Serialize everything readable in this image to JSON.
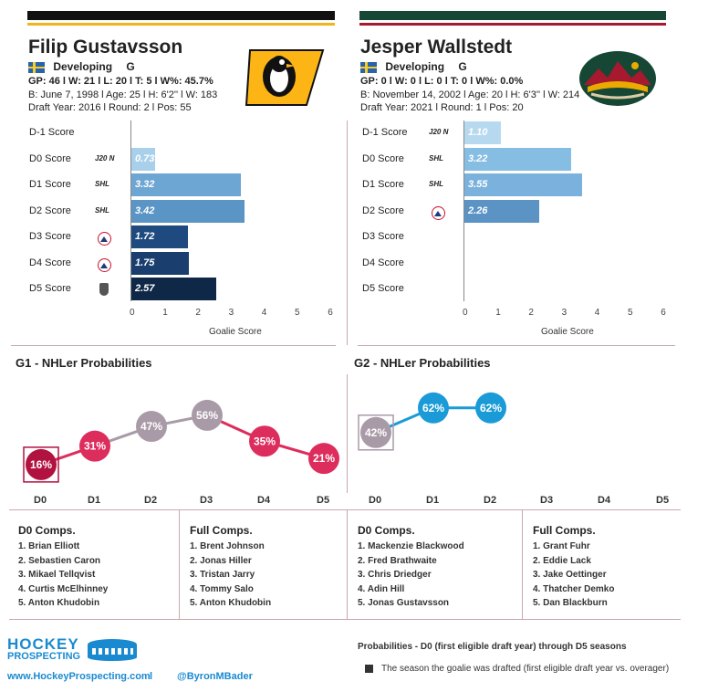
{
  "players": [
    {
      "name": "Filip Gustavsson",
      "flag": "sweden-flag",
      "status": "Developing",
      "position": "G",
      "stats_line": "GP: 46 l W: 21 l L: 20  l T: 5  l W%: 45.7%",
      "bio_line": "B: June 7, 1998 l Age: 25 l H: 6'2'' l W: 183",
      "draft_line": "Draft Year: 2016 l Round: 2 l Pos: 55",
      "team_logo": "pittsburgh-penguins-logo",
      "colors": {
        "top": "#111111",
        "sub": "#f2b418"
      },
      "bars": [
        {
          "label": "D-1 Score",
          "league": "",
          "value": null,
          "color": ""
        },
        {
          "label": "D0 Score",
          "league": "J20 N",
          "value": 0.73,
          "color": "#a9d0ea"
        },
        {
          "label": "D1 Score",
          "league": "SHL",
          "value": 3.32,
          "color": "#6ea6d3"
        },
        {
          "label": "D2  Score",
          "league": "SHL",
          "value": 3.42,
          "color": "#5b95c6"
        },
        {
          "label": "D3 Score",
          "league": "AHL",
          "value": 1.72,
          "color": "#1e4a80"
        },
        {
          "label": "D4 Score",
          "league": "AHL",
          "value": 1.75,
          "color": "#1a3f6f"
        },
        {
          "label": "D5 Score",
          "league": "KHL",
          "value": 2.57,
          "color": "#0f2847"
        }
      ],
      "prob_title": "G1 - NHLer Probabilities",
      "probs": [
        {
          "season": "D0",
          "value": 16,
          "label": "16%",
          "color": "#b2123f",
          "drafted": true
        },
        {
          "season": "D1",
          "value": 31,
          "label": "31%",
          "color": "#dd2d5c",
          "drafted": false
        },
        {
          "season": "D2",
          "value": 47,
          "label": "47%",
          "color": "#a99aa8",
          "drafted": false
        },
        {
          "season": "D3",
          "value": 56,
          "label": "56%",
          "color": "#a99aa8",
          "drafted": false
        },
        {
          "season": "D4",
          "value": 35,
          "label": "35%",
          "color": "#dd2d5c",
          "drafted": false
        },
        {
          "season": "D5",
          "value": 21,
          "label": "21%",
          "color": "#dd2d5c",
          "drafted": false
        }
      ],
      "d0_comps": {
        "title": "D0 Comps.",
        "items": [
          "1. Brian Elliott",
          "2. Sebastien Caron",
          "3. Mikael Tellqvist",
          "4. Curtis McElhinney",
          "5. Anton Khudobin"
        ]
      },
      "full_comps": {
        "title": "Full Comps.",
        "items": [
          "1. Brent Johnson",
          "2. Jonas Hiller",
          "3. Tristan Jarry",
          "4. Tommy Salo",
          "5. Anton Khudobin"
        ]
      }
    },
    {
      "name": "Jesper Wallstedt",
      "flag": "sweden-flag",
      "status": "Developing",
      "position": "G",
      "stats_line": "GP: 0 l W: 0 l L: 0  l T: 0  l W%: 0.0%",
      "bio_line": "B: November 14, 2002 l Age: 20 l H: 6'3'' l W: 214",
      "draft_line": "Draft Year: 2021 l Round: 1 l Pos: 20",
      "team_logo": "minnesota-wild-logo",
      "colors": {
        "top": "#154734",
        "sub": "#a6192e"
      },
      "bars": [
        {
          "label": "D-1 Score",
          "league": "J20 N",
          "value": 1.1,
          "color": "#b7d9ef"
        },
        {
          "label": "D0 Score",
          "league": "SHL",
          "value": 3.22,
          "color": "#86bde2"
        },
        {
          "label": "D1 Score",
          "league": "SHL",
          "value": 3.55,
          "color": "#7ab2dd"
        },
        {
          "label": "D2  Score",
          "league": "AHL",
          "value": 2.26,
          "color": "#5a93c4"
        },
        {
          "label": "D3 Score",
          "league": "",
          "value": null,
          "color": ""
        },
        {
          "label": "D4 Score",
          "league": "",
          "value": null,
          "color": ""
        },
        {
          "label": "D5 Score",
          "league": "",
          "value": null,
          "color": ""
        }
      ],
      "prob_title": "G2 - NHLer Probabilities",
      "probs": [
        {
          "season": "D0",
          "value": 42,
          "label": "42%",
          "color": "#a99aa8",
          "drafted": true
        },
        {
          "season": "D1",
          "value": 62,
          "label": "62%",
          "color": "#1a9bd7",
          "drafted": false
        },
        {
          "season": "D2",
          "value": 62,
          "label": "62%",
          "color": "#1a9bd7",
          "drafted": false
        },
        {
          "season": "D3",
          "value": null,
          "label": "",
          "color": "",
          "drafted": false
        },
        {
          "season": "D4",
          "value": null,
          "label": "",
          "color": "",
          "drafted": false
        },
        {
          "season": "D5",
          "value": null,
          "label": "",
          "color": "",
          "drafted": false
        }
      ],
      "d0_comps": {
        "title": "D0 Comps.",
        "items": [
          "1. Mackenzie Blackwood",
          "2. Fred Brathwaite",
          "3. Chris Driedger",
          "4. Adin Hill",
          "5. Jonas Gustavsson"
        ]
      },
      "full_comps": {
        "title": "Full Comps.",
        "items": [
          "1. Grant Fuhr",
          "2. Eddie Lack",
          "3. Jake Oettinger",
          "4. Thatcher Demko",
          "5. Dan Blackburn"
        ]
      }
    }
  ],
  "chart_data": [
    {
      "type": "bar",
      "orientation": "horizontal",
      "title": "Filip Gustavsson",
      "categories": [
        "D-1 Score",
        "D0 Score",
        "D1 Score",
        "D2  Score",
        "D3 Score",
        "D4 Score",
        "D5 Score"
      ],
      "values": [
        null,
        0.73,
        3.32,
        3.42,
        1.72,
        1.75,
        2.57
      ],
      "xlabel": "Goalie Score",
      "xlim": [
        0,
        6
      ],
      "xticks": [
        "0",
        "1",
        "2",
        "3",
        "4",
        "5",
        "6"
      ]
    },
    {
      "type": "bar",
      "orientation": "horizontal",
      "title": "Jesper Wallstedt",
      "categories": [
        "D-1 Score",
        "D0 Score",
        "D1 Score",
        "D2  Score",
        "D3 Score",
        "D4 Score",
        "D5 Score"
      ],
      "values": [
        1.1,
        3.22,
        3.55,
        2.26,
        null,
        null,
        null
      ],
      "xlabel": "Goalie Score",
      "xlim": [
        0,
        6
      ],
      "xticks": [
        "0",
        "1",
        "2",
        "3",
        "4",
        "5",
        "6"
      ]
    },
    {
      "type": "line",
      "title": "G1 - NHLer Probabilities",
      "x": [
        "D0",
        "D1",
        "D2",
        "D3",
        "D4",
        "D5"
      ],
      "y": [
        16,
        31,
        47,
        56,
        35,
        21
      ]
    },
    {
      "type": "line",
      "title": "G2 - NHLer Probabilities",
      "x": [
        "D0",
        "D1",
        "D2",
        "D3",
        "D4",
        "D5"
      ],
      "y": [
        42,
        62,
        62,
        null,
        null,
        null
      ]
    }
  ],
  "footer": {
    "brand_line1": "HOCKEY",
    "brand_line2": "PROSPECTING",
    "website": "www.HockeyProspecting.com",
    "separator": "l",
    "handle": "@ByronMBader",
    "note": "Probabilities - D0 (first eligible draft year) through D5 seasons",
    "legend": "The season the goalie was drafted (first eligible draft year vs. overager)"
  }
}
